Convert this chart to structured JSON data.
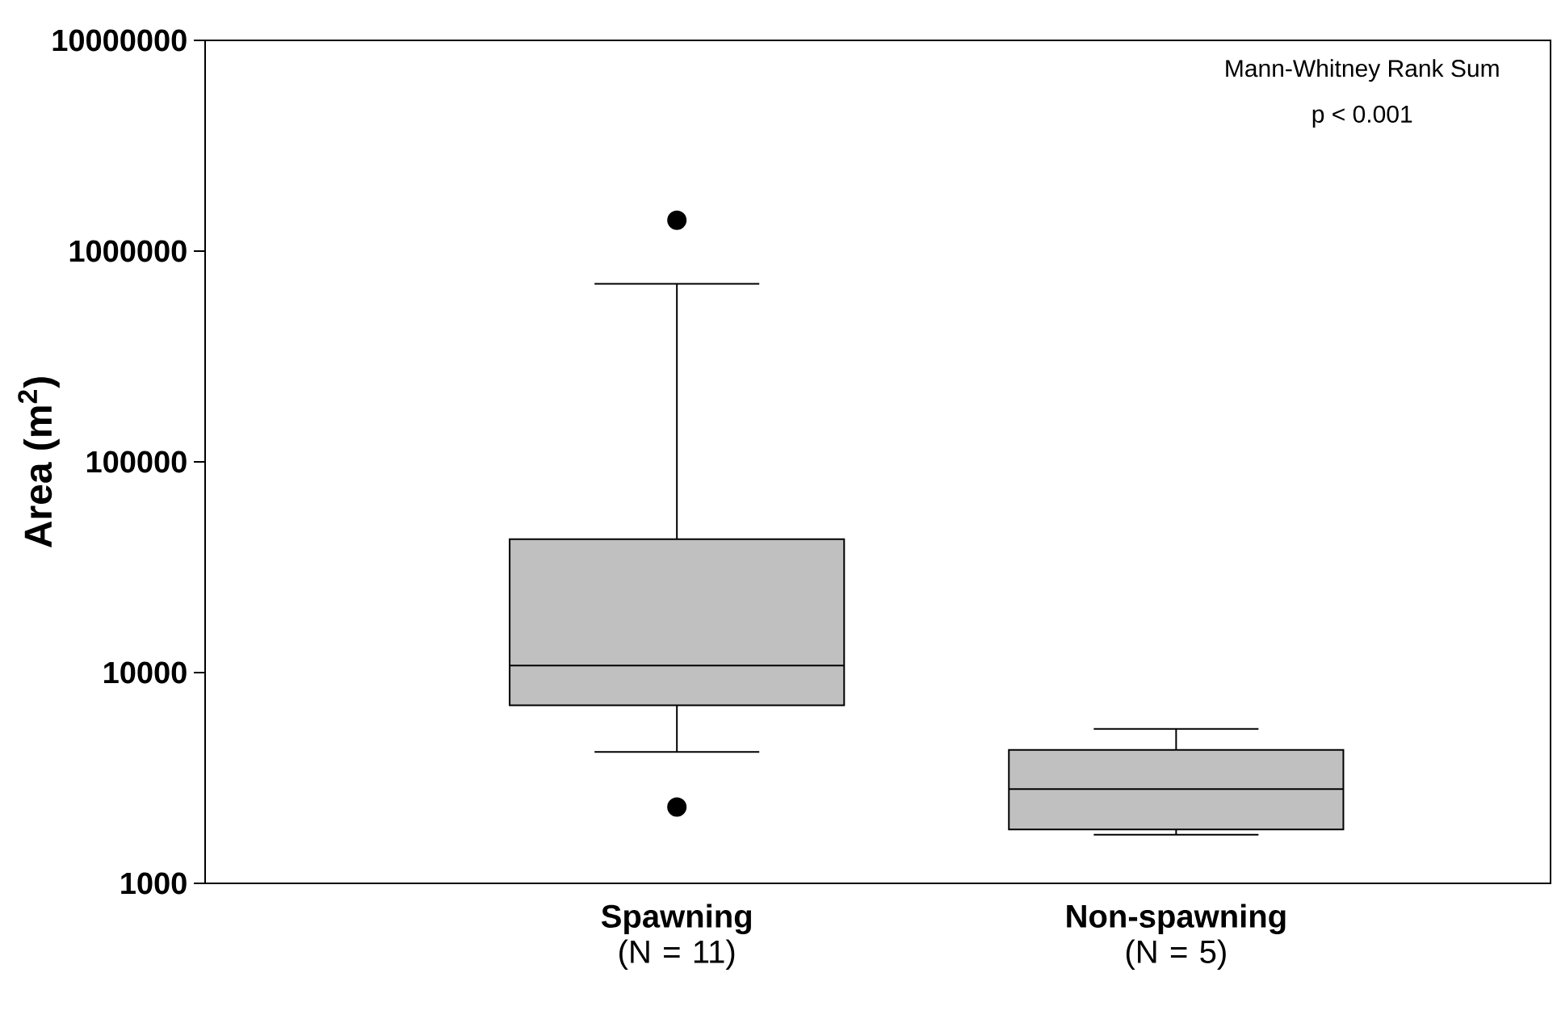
{
  "chart_data": {
    "type": "box",
    "ylabel": "Area (m$^{2}$)",
    "log": "y",
    "ylim": [
      1000,
      10000000
    ],
    "yticks": [
      1000,
      10000,
      100000,
      1000000,
      10000000
    ],
    "color": "#c0c0c0",
    "categories": [
      "**Spawning** (N = 11)",
      "**Non-spawning** (N = 5)"
    ],
    "boxes": [
      {
        "low": 4200,
        "q1": 7000,
        "median": 10800,
        "q3": 43000,
        "high": 700000,
        "outliers": [
          1400000,
          2300
        ]
      },
      {
        "low": 1700,
        "q1": 1800,
        "median": 2800,
        "q3": 4300,
        "high": 5400
      }
    ],
    "annotations": [
      "Mann-Whitney Rank Sum",
      "p < 0.001"
    ]
  }
}
